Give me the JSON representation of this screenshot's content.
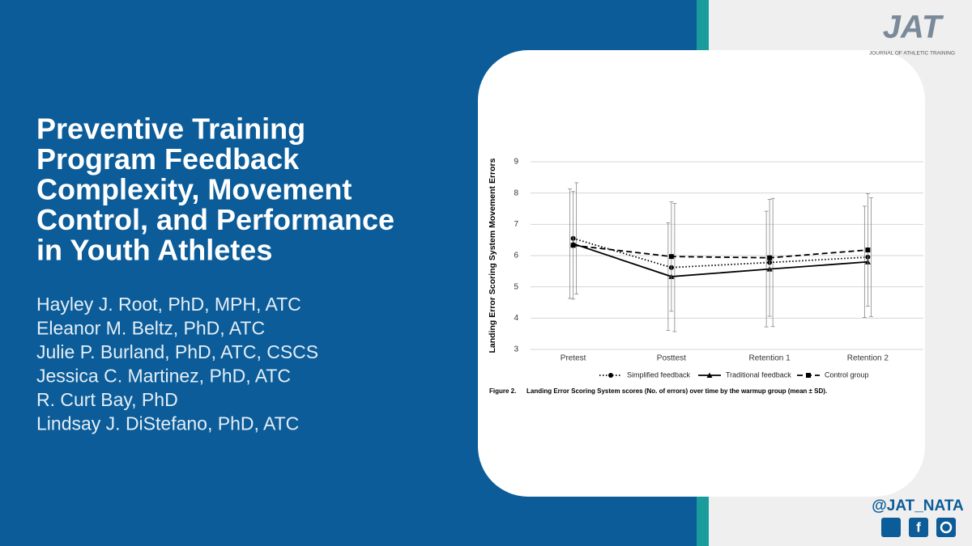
{
  "header": {
    "title_lines": [
      "Preventive Training",
      "Program Feedback",
      "Complexity, Movement",
      "Control, and Performance",
      "in Youth Athletes"
    ],
    "authors": [
      "Hayley J. Root, PhD, MPH, ATC",
      "Eleanor M. Beltz, PhD, ATC",
      "Julie P. Burland, PhD, ATC, CSCS",
      "Jessica C. Martinez, PhD, ATC",
      "R. Curt Bay, PhD",
      "Lindsay J. DiStefano, PhD, ATC"
    ]
  },
  "logo": {
    "mark": "JAT",
    "name": "JOURNAL OF ATHLETIC TRAINING"
  },
  "social": {
    "handle": "@JAT_NATA"
  },
  "chart_data": {
    "type": "line",
    "ylabel": "Landing Error Scoring System Movement Errors",
    "caption_label": "Figure 2.",
    "caption": "Landing Error Scoring System scores (No. of errors) over time by the warmup group (mean ± SD).",
    "categories": [
      "Pretest",
      "Posttest",
      "Retention 1",
      "Retention 2"
    ],
    "ylim": [
      3,
      9
    ],
    "yticks": [
      3,
      4,
      5,
      6,
      7,
      8,
      9
    ],
    "grid": true,
    "series": [
      {
        "name": "Simplified feedback",
        "color": "#000000",
        "style": "dotted",
        "marker": "circle",
        "values": [
          6.55,
          5.62,
          5.78,
          5.95
        ],
        "errors": [
          1.78,
          2.05,
          2.05,
          1.9
        ]
      },
      {
        "name": "Traditional feedback",
        "color": "#000000",
        "style": "solid",
        "marker": "triangle",
        "values": [
          6.38,
          5.33,
          5.57,
          5.8
        ],
        "errors": [
          1.75,
          1.72,
          1.85,
          1.78
        ]
      },
      {
        "name": "Control group",
        "color": "#000000",
        "style": "dashed",
        "marker": "square",
        "values": [
          6.33,
          5.97,
          5.93,
          6.18
        ],
        "errors": [
          1.72,
          1.75,
          1.87,
          1.8
        ]
      }
    ]
  }
}
